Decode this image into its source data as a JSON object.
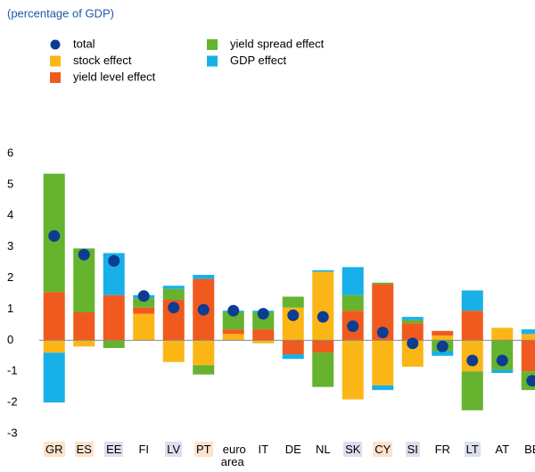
{
  "chart_data": {
    "type": "bar",
    "stacked": true,
    "subtitle": "(percentage of GDP)",
    "categories": [
      "GR",
      "ES",
      "EE",
      "FI",
      "LV",
      "PT",
      "euro area",
      "IT",
      "DE",
      "NL",
      "SK",
      "CY",
      "SI",
      "FR",
      "LT",
      "AT",
      "BE"
    ],
    "category_highlights": [
      "#fde2cc",
      "#fde2cc",
      "#dcdfee",
      null,
      "#dcdfee",
      "#fde2cc",
      null,
      null,
      null,
      null,
      "#dcdfee",
      "#fde2cc",
      "#dcdfee",
      null,
      "#dcdfee",
      null,
      null
    ],
    "series": [
      {
        "name": "total",
        "color": "#0d3d91",
        "style": "marker",
        "values": [
          3.35,
          2.75,
          2.55,
          1.42,
          1.05,
          0.98,
          0.95,
          0.85,
          0.8,
          0.75,
          0.45,
          0.25,
          -0.1,
          -0.2,
          -0.65,
          -0.65,
          -1.3
        ]
      },
      {
        "name": "stock effect",
        "color": "#fbb616",
        "values": [
          -0.4,
          -0.2,
          0,
          0.85,
          -0.7,
          -0.8,
          0.2,
          -0.1,
          1.05,
          2.2,
          -1.9,
          -1.45,
          -0.85,
          0.15,
          -1.0,
          0.4,
          0.2
        ]
      },
      {
        "name": "yield level effect",
        "color": "#f05a1e",
        "values": [
          1.55,
          0.9,
          1.45,
          0.2,
          1.3,
          1.97,
          0.15,
          0.35,
          -0.45,
          -0.4,
          0.95,
          1.8,
          0.55,
          0.15,
          0.95,
          0,
          -1.0
        ]
      },
      {
        "name": "yield spread effect",
        "color": "#65b32e",
        "values": [
          3.8,
          2.05,
          -0.25,
          0.3,
          0.35,
          -0.3,
          0.55,
          0.55,
          0.35,
          -1.1,
          0.5,
          0.05,
          0.1,
          -0.35,
          -1.25,
          -0.95,
          -0.6
        ]
      },
      {
        "name": "GDP effect",
        "color": "#17b0e8",
        "values": [
          -1.6,
          0,
          1.35,
          0.1,
          0.1,
          0.13,
          0.05,
          0.05,
          -0.15,
          0.05,
          0.9,
          -0.15,
          0.1,
          -0.15,
          0.65,
          -0.1,
          0.15
        ]
      }
    ],
    "ylim": [
      -3,
      6
    ],
    "yticks": [
      -3,
      -2,
      -1,
      0,
      1,
      2,
      3,
      4,
      5,
      6
    ],
    "grid": false
  }
}
